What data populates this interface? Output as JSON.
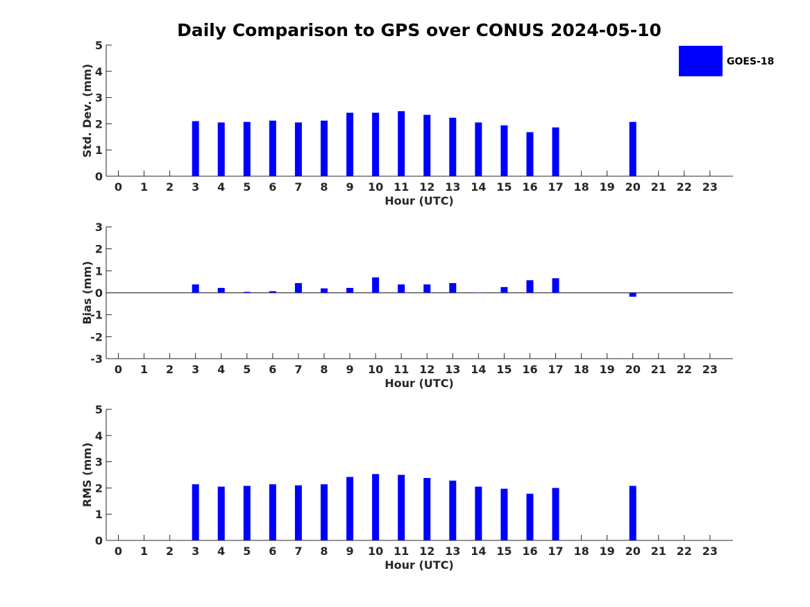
{
  "title": "Daily Comparison to GPS over CONUS 2024-05-10",
  "legend": {
    "label": "GOES-18",
    "color": "#0000ff",
    "position": "top-right"
  },
  "chart_data": [
    {
      "type": "bar",
      "title": "Daily Comparison to GPS over CONUS 2024-05-10",
      "xlabel": "Hour (UTC)",
      "ylabel": "Std. Dev. (mm)",
      "categories": [
        "0",
        "1",
        "2",
        "3",
        "4",
        "5",
        "6",
        "7",
        "8",
        "9",
        "10",
        "11",
        "12",
        "13",
        "14",
        "15",
        "16",
        "17",
        "18",
        "19",
        "20",
        "21",
        "22",
        "23"
      ],
      "ylim": [
        0,
        5
      ],
      "yticks": [
        0,
        1,
        2,
        3,
        4,
        5
      ],
      "grid": false,
      "series": [
        {
          "name": "GOES-18",
          "color": "#0000ff",
          "values": [
            null,
            null,
            null,
            2.1,
            2.05,
            2.07,
            2.12,
            2.05,
            2.12,
            2.42,
            2.42,
            2.48,
            2.34,
            2.23,
            2.05,
            1.94,
            1.68,
            1.86,
            null,
            null,
            2.07,
            null,
            null,
            null
          ]
        }
      ]
    },
    {
      "type": "bar",
      "xlabel": "Hour (UTC)",
      "ylabel": "Bias (mm)",
      "categories": [
        "0",
        "1",
        "2",
        "3",
        "4",
        "5",
        "6",
        "7",
        "8",
        "9",
        "10",
        "11",
        "12",
        "13",
        "14",
        "15",
        "16",
        "17",
        "18",
        "19",
        "20",
        "21",
        "22",
        "23"
      ],
      "ylim": [
        -3,
        3
      ],
      "yticks": [
        -3,
        -2,
        -1,
        0,
        1,
        2,
        3
      ],
      "grid": false,
      "series": [
        {
          "name": "GOES-18",
          "color": "#0000ff",
          "values": [
            null,
            null,
            null,
            0.38,
            0.22,
            0.04,
            0.07,
            0.44,
            0.2,
            0.22,
            0.7,
            0.38,
            0.38,
            0.44,
            0.01,
            0.26,
            0.57,
            0.66,
            null,
            null,
            -0.18,
            null,
            null,
            null
          ]
        }
      ]
    },
    {
      "type": "bar",
      "xlabel": "Hour (UTC)",
      "ylabel": "RMS (mm)",
      "categories": [
        "0",
        "1",
        "2",
        "3",
        "4",
        "5",
        "6",
        "7",
        "8",
        "9",
        "10",
        "11",
        "12",
        "13",
        "14",
        "15",
        "16",
        "17",
        "18",
        "19",
        "20",
        "21",
        "22",
        "23"
      ],
      "ylim": [
        0,
        5
      ],
      "yticks": [
        0,
        1,
        2,
        3,
        4,
        5
      ],
      "grid": false,
      "series": [
        {
          "name": "GOES-18",
          "color": "#0000ff",
          "values": [
            null,
            null,
            null,
            2.14,
            2.05,
            2.08,
            2.14,
            2.1,
            2.14,
            2.42,
            2.53,
            2.5,
            2.38,
            2.28,
            2.05,
            1.97,
            1.78,
            2.0,
            null,
            null,
            2.08,
            null,
            null,
            null
          ]
        }
      ]
    }
  ]
}
